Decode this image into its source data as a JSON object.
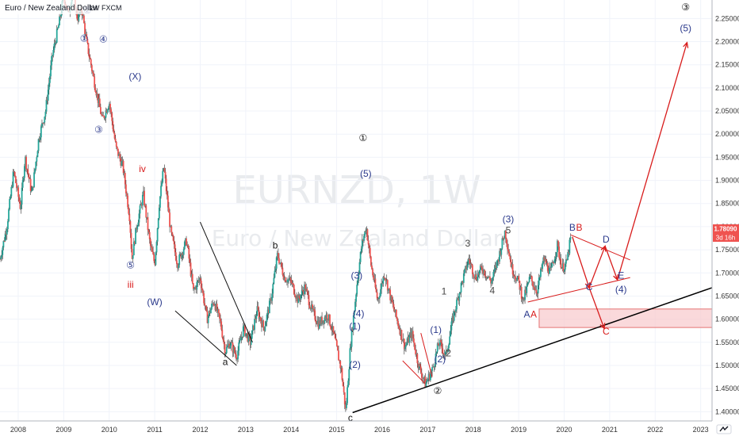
{
  "header": {
    "symbol_title": "Euro / New Zealand Dollar",
    "interval_source": "1W FXCM"
  },
  "watermark": {
    "ticker": "EURNZD, 1W",
    "name": "Euro / New Zealand Dollar"
  },
  "price_badge": {
    "price": "1.78090",
    "countdown": "3d 16h",
    "color": "#ef5350"
  },
  "colors": {
    "candle_up": "#26a69a",
    "candle_down": "#ef5350",
    "wave_blue": "#2b3a8c",
    "wave_red": "#d81b1b",
    "zone_fill": "#f8c9cc"
  },
  "chart_data": {
    "type": "candlestick",
    "title": "",
    "xlabel": "",
    "ylabel": "",
    "x_ticks": [
      "2008",
      "2009",
      "2010",
      "2011",
      "2012",
      "2013",
      "2014",
      "2015",
      "2016",
      "2017",
      "2018",
      "2019",
      "2020",
      "2021",
      "2022",
      "2023"
    ],
    "y_ticks": [
      "2.25000",
      "2.20000",
      "2.15000",
      "2.10000",
      "2.05000",
      "2.00000",
      "1.95000",
      "1.90000",
      "1.85000",
      "1.80000",
      "1.75000",
      "1.70000",
      "1.65000",
      "1.60000",
      "1.55000",
      "1.50000",
      "1.45000",
      "1.40000"
    ],
    "ylim": [
      1.38,
      2.29
    ],
    "xlim": [
      2007.6,
      2023.25
    ],
    "last_price": 1.7809,
    "price_path": [
      [
        2007.6,
        1.73
      ],
      [
        2007.75,
        1.8
      ],
      [
        2007.9,
        1.92
      ],
      [
        2008.05,
        1.84
      ],
      [
        2008.15,
        1.95
      ],
      [
        2008.3,
        1.87
      ],
      [
        2008.45,
        1.99
      ],
      [
        2008.6,
        2.05
      ],
      [
        2008.75,
        2.17
      ],
      [
        2008.9,
        2.24
      ],
      [
        2009.0,
        2.3
      ],
      [
        2009.1,
        2.26
      ],
      [
        2009.2,
        2.31
      ],
      [
        2009.3,
        2.25
      ],
      [
        2009.4,
        2.27
      ],
      [
        2009.5,
        2.2
      ],
      [
        2009.7,
        2.1
      ],
      [
        2009.85,
        2.03
      ],
      [
        2010.0,
        2.07
      ],
      [
        2010.15,
        1.97
      ],
      [
        2010.3,
        1.93
      ],
      [
        2010.45,
        1.82
      ],
      [
        2010.5,
        1.73
      ],
      [
        2010.6,
        1.8
      ],
      [
        2010.75,
        1.87
      ],
      [
        2010.9,
        1.76
      ],
      [
        2011.0,
        1.72
      ],
      [
        2011.1,
        1.85
      ],
      [
        2011.2,
        1.93
      ],
      [
        2011.35,
        1.79
      ],
      [
        2011.5,
        1.72
      ],
      [
        2011.7,
        1.77
      ],
      [
        2011.85,
        1.66
      ],
      [
        2012.0,
        1.69
      ],
      [
        2012.15,
        1.6
      ],
      [
        2012.3,
        1.64
      ],
      [
        2012.45,
        1.59
      ],
      [
        2012.55,
        1.53
      ],
      [
        2012.65,
        1.55
      ],
      [
        2012.8,
        1.52
      ],
      [
        2012.95,
        1.58
      ],
      [
        2013.1,
        1.55
      ],
      [
        2013.25,
        1.62
      ],
      [
        2013.4,
        1.58
      ],
      [
        2013.55,
        1.64
      ],
      [
        2013.7,
        1.74
      ],
      [
        2013.85,
        1.69
      ],
      [
        2014.0,
        1.68
      ],
      [
        2014.15,
        1.64
      ],
      [
        2014.3,
        1.67
      ],
      [
        2014.45,
        1.62
      ],
      [
        2014.6,
        1.59
      ],
      [
        2014.8,
        1.61
      ],
      [
        2014.95,
        1.56
      ],
      [
        2015.1,
        1.49
      ],
      [
        2015.2,
        1.4
      ],
      [
        2015.3,
        1.54
      ],
      [
        2015.45,
        1.68
      ],
      [
        2015.55,
        1.76
      ],
      [
        2015.65,
        1.8
      ],
      [
        2015.75,
        1.72
      ],
      [
        2015.9,
        1.64
      ],
      [
        2016.05,
        1.7
      ],
      [
        2016.2,
        1.64
      ],
      [
        2016.35,
        1.59
      ],
      [
        2016.5,
        1.54
      ],
      [
        2016.65,
        1.57
      ],
      [
        2016.8,
        1.5
      ],
      [
        2016.95,
        1.46
      ],
      [
        2017.1,
        1.49
      ],
      [
        2017.25,
        1.55
      ],
      [
        2017.4,
        1.52
      ],
      [
        2017.55,
        1.6
      ],
      [
        2017.7,
        1.66
      ],
      [
        2017.9,
        1.73
      ],
      [
        2018.05,
        1.69
      ],
      [
        2018.2,
        1.71
      ],
      [
        2018.4,
        1.68
      ],
      [
        2018.55,
        1.73
      ],
      [
        2018.7,
        1.79
      ],
      [
        2018.85,
        1.71
      ],
      [
        2019.0,
        1.68
      ],
      [
        2019.1,
        1.64
      ],
      [
        2019.25,
        1.69
      ],
      [
        2019.4,
        1.66
      ],
      [
        2019.55,
        1.73
      ],
      [
        2019.7,
        1.7
      ],
      [
        2019.85,
        1.76
      ],
      [
        2019.95,
        1.71
      ],
      [
        2020.05,
        1.72
      ],
      [
        2020.15,
        1.78
      ]
    ],
    "wave_labels": [
      {
        "text": "①",
        "x": 2009.45,
        "y": 2.2,
        "color": "#2b3a8c",
        "size": 11
      },
      {
        "text": "②",
        "x": 2009.52,
        "y": 2.261,
        "color": "#2b3a8c",
        "size": 11
      },
      {
        "text": "④",
        "x": 2009.87,
        "y": 2.198,
        "color": "#2b3a8c",
        "size": 11
      },
      {
        "text": "③",
        "x": 2009.77,
        "y": 2.003,
        "color": "#2b3a8c",
        "size": 11
      },
      {
        "text": "(X)",
        "x": 2010.57,
        "y": 2.118,
        "color": "#2b3a8c",
        "size": 12
      },
      {
        "text": "iv",
        "x": 2010.73,
        "y": 1.918,
        "color": "#d81b1b",
        "size": 11
      },
      {
        "text": "⑤",
        "x": 2010.47,
        "y": 1.71,
        "color": "#2b3a8c",
        "size": 11
      },
      {
        "text": "iii",
        "x": 2010.47,
        "y": 1.668,
        "color": "#d81b1b",
        "size": 11
      },
      {
        "text": "(W)",
        "x": 2011.0,
        "y": 1.63,
        "color": "#2b3a8c",
        "size": 12
      },
      {
        "text": "a",
        "x": 2012.55,
        "y": 1.501,
        "color": "#111111",
        "size": 10
      },
      {
        "text": "b",
        "x": 2013.65,
        "y": 1.753,
        "color": "#111111",
        "size": 10
      },
      {
        "text": "c",
        "x": 2015.3,
        "y": 1.38,
        "color": "#111111",
        "size": 10
      },
      {
        "text": "①",
        "x": 2015.58,
        "y": 1.985,
        "color": "#111111",
        "size": 14
      },
      {
        "text": "(5)",
        "x": 2015.64,
        "y": 1.908,
        "color": "#2b3a8c",
        "size": 12
      },
      {
        "text": "(3)",
        "x": 2015.44,
        "y": 1.688,
        "color": "#2b3a8c",
        "size": 12
      },
      {
        "text": "(4)",
        "x": 2015.48,
        "y": 1.605,
        "color": "#2b3a8c",
        "size": 12
      },
      {
        "text": "(1)",
        "x": 2015.4,
        "y": 1.578,
        "color": "#2b3a8c",
        "size": 12
      },
      {
        "text": "(2)",
        "x": 2015.4,
        "y": 1.495,
        "color": "#2b3a8c",
        "size": 12
      },
      {
        "text": "1",
        "x": 2017.36,
        "y": 1.653,
        "color": "#444444",
        "size": 11
      },
      {
        "text": "(1)",
        "x": 2017.18,
        "y": 1.57,
        "color": "#2b3a8c",
        "size": 12
      },
      {
        "text": "2",
        "x": 2017.46,
        "y": 1.52,
        "color": "#444444",
        "size": 11
      },
      {
        "text": "(2)",
        "x": 2017.27,
        "y": 1.507,
        "color": "#2b3a8c",
        "size": 12
      },
      {
        "text": "②",
        "x": 2017.22,
        "y": 1.438,
        "color": "#111111",
        "size": 14
      },
      {
        "text": "3",
        "x": 2017.88,
        "y": 1.757,
        "color": "#444444",
        "size": 11
      },
      {
        "text": "(3)",
        "x": 2018.77,
        "y": 1.809,
        "color": "#2b3a8c",
        "size": 12
      },
      {
        "text": "5",
        "x": 2018.77,
        "y": 1.785,
        "color": "#444444",
        "size": 11
      },
      {
        "text": "4",
        "x": 2018.42,
        "y": 1.655,
        "color": "#444444",
        "size": 11
      },
      {
        "text": "A",
        "x": 2019.18,
        "y": 1.604,
        "color": "#2b3a8c",
        "size": 11
      },
      {
        "text": "A",
        "x": 2019.33,
        "y": 1.604,
        "color": "#d81b1b",
        "size": 11
      },
      {
        "text": "B",
        "x": 2020.18,
        "y": 1.791,
        "color": "#2b3a8c",
        "size": 11
      },
      {
        "text": "B",
        "x": 2020.33,
        "y": 1.791,
        "color": "#d81b1b",
        "size": 11
      },
      {
        "text": "C",
        "x": 2020.55,
        "y": 1.663,
        "color": "#2b3a8c",
        "size": 11
      },
      {
        "text": "D",
        "x": 2020.92,
        "y": 1.766,
        "color": "#2b3a8c",
        "size": 11
      },
      {
        "text": "E",
        "x": 2021.25,
        "y": 1.688,
        "color": "#2b3a8c",
        "size": 11
      },
      {
        "text": "(4)",
        "x": 2021.25,
        "y": 1.658,
        "color": "#2b3a8c",
        "size": 12
      },
      {
        "text": "C",
        "x": 2020.92,
        "y": 1.567,
        "color": "#d81b1b",
        "size": 11
      },
      {
        "text": "③",
        "x": 2022.67,
        "y": 2.268,
        "color": "#111111",
        "size": 14
      },
      {
        "text": "(5)",
        "x": 2022.67,
        "y": 2.222,
        "color": "#2b3a8c",
        "size": 12
      }
    ],
    "trend_lines": [
      {
        "from": [
          2015.35,
          1.398
        ],
        "to": [
          2023.25,
          1.668
        ],
        "color": "#000000",
        "width": 1.5
      },
      {
        "from": [
          2012.0,
          1.81
        ],
        "to": [
          2013.15,
          1.55
        ],
        "color": "#111111",
        "width": 1
      },
      {
        "from": [
          2011.45,
          1.618
        ],
        "to": [
          2012.8,
          1.5
        ],
        "color": "#111111",
        "width": 1
      },
      {
        "from": [
          2016.85,
          1.57
        ],
        "to": [
          2017.1,
          1.475
        ],
        "color": "#d81b1b",
        "width": 1
      },
      {
        "from": [
          2016.45,
          1.51
        ],
        "to": [
          2016.95,
          1.46
        ],
        "color": "#d81b1b",
        "width": 1
      },
      {
        "from": [
          2019.2,
          1.637
        ],
        "to": [
          2021.45,
          1.69
        ],
        "color": "#d81b1b",
        "width": 1
      },
      {
        "from": [
          2020.15,
          1.782
        ],
        "to": [
          2021.45,
          1.728
        ],
        "color": "#d81b1b",
        "width": 1
      }
    ],
    "arrows": [
      {
        "points": [
          [
            2020.18,
            1.778
          ],
          [
            2020.55,
            1.668
          ]
        ],
        "color": "#d81b1b"
      },
      {
        "points": [
          [
            2020.55,
            1.668
          ],
          [
            2020.9,
            1.758
          ]
        ],
        "color": "#d81b1b"
      },
      {
        "points": [
          [
            2020.9,
            1.758
          ],
          [
            2021.17,
            1.685
          ]
        ],
        "color": "#d81b1b"
      },
      {
        "points": [
          [
            2021.17,
            1.685
          ],
          [
            2022.7,
            2.198
          ]
        ],
        "color": "#d81b1b"
      },
      {
        "points": [
          [
            2020.55,
            1.668
          ],
          [
            2020.88,
            1.58
          ]
        ],
        "color": "#d81b1b"
      }
    ],
    "zones": [
      {
        "x0": 2019.45,
        "x1": 2023.25,
        "y0": 1.582,
        "y1": 1.622,
        "fill": "#f8c9cc",
        "stroke": "#e57373"
      }
    ]
  }
}
